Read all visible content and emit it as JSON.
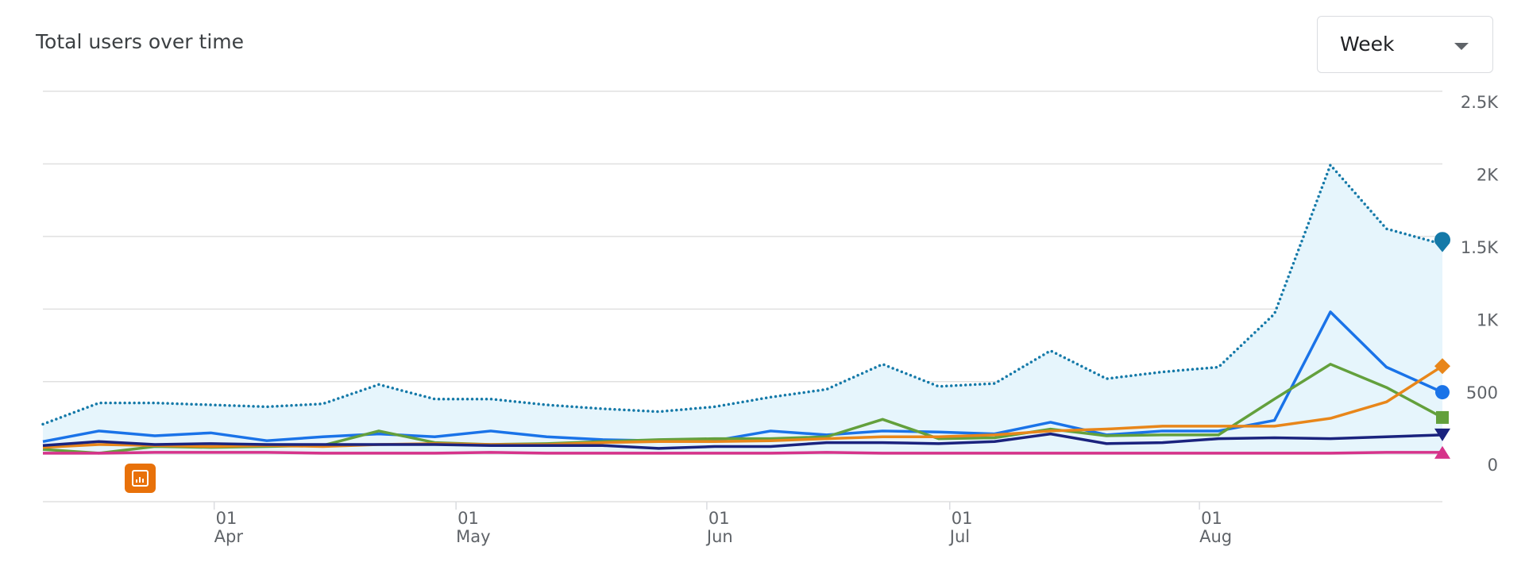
{
  "header": {
    "title": "Total users over time",
    "dropdown": "Week"
  },
  "chart_data": {
    "type": "line",
    "categories": [
      null,
      null,
      null,
      null,
      null,
      null,
      null,
      null,
      null,
      null,
      null,
      null,
      null,
      null,
      null,
      null,
      null,
      null,
      null,
      null,
      null,
      null,
      null,
      null,
      null,
      null
    ],
    "xticks": [
      {
        "value": 3.06,
        "label": "01",
        "sublabel": "Apr"
      },
      {
        "value": 7.38,
        "label": "01",
        "sublabel": "May"
      },
      {
        "value": 11.86,
        "label": "01",
        "sublabel": "Jun"
      },
      {
        "value": 16.2,
        "label": "01",
        "sublabel": "Jul"
      },
      {
        "value": 20.66,
        "label": "01",
        "sublabel": "Aug"
      }
    ],
    "ylim": [
      -327,
      2500
    ],
    "yticks": [
      0,
      500,
      {
        "value": 1000,
        "label": "1K"
      },
      {
        "value": 1500,
        "label": "1.5K"
      },
      {
        "value": 2000,
        "label": "2K"
      },
      {
        "value": 2500,
        "label": "2.5K"
      }
    ],
    "grid": true,
    "series": [
      {
        "color": "#1479a8",
        "style": "dotted",
        "area": true,
        "marker": "pin",
        "values": [
          207,
          353,
          353,
          340,
          327,
          347,
          480,
          380,
          380,
          340,
          313,
          293,
          327,
          393,
          447,
          620,
          467,
          487,
          713,
          520,
          567,
          600,
          967,
          1993,
          1553,
          1447
        ]
      },
      {
        "color": "#1a73e8",
        "marker": "circle",
        "values": [
          87,
          160,
          127,
          147,
          93,
          120,
          140,
          120,
          160,
          120,
          100,
          93,
          93,
          160,
          133,
          160,
          153,
          140,
          220,
          133,
          160,
          160,
          233,
          980,
          600,
          427
        ]
      },
      {
        "color": "#63a03c",
        "marker": "square",
        "values": [
          33,
          7,
          53,
          47,
          53,
          60,
          160,
          80,
          67,
          73,
          87,
          100,
          107,
          107,
          120,
          240,
          107,
          113,
          173,
          127,
          133,
          133,
          380,
          620,
          460,
          253
        ]
      },
      {
        "color": "#e8861a",
        "marker": "diamond",
        "values": [
          47,
          67,
          60,
          53,
          60,
          53,
          67,
          73,
          67,
          67,
          80,
          87,
          87,
          93,
          107,
          120,
          120,
          133,
          160,
          173,
          193,
          193,
          193,
          247,
          360,
          607
        ]
      },
      {
        "color": "#1a237e",
        "marker": "triangle-down",
        "values": [
          60,
          87,
          67,
          73,
          67,
          67,
          67,
          67,
          60,
          60,
          60,
          40,
          53,
          53,
          80,
          80,
          73,
          87,
          140,
          73,
          80,
          107,
          113,
          107,
          120,
          133
        ]
      },
      {
        "color": "#d6338a",
        "marker": "triangle-up",
        "values": [
          7,
          7,
          13,
          13,
          13,
          7,
          7,
          7,
          13,
          7,
          7,
          7,
          7,
          7,
          13,
          7,
          7,
          7,
          7,
          7,
          7,
          7,
          7,
          7,
          13,
          13
        ]
      }
    ]
  }
}
